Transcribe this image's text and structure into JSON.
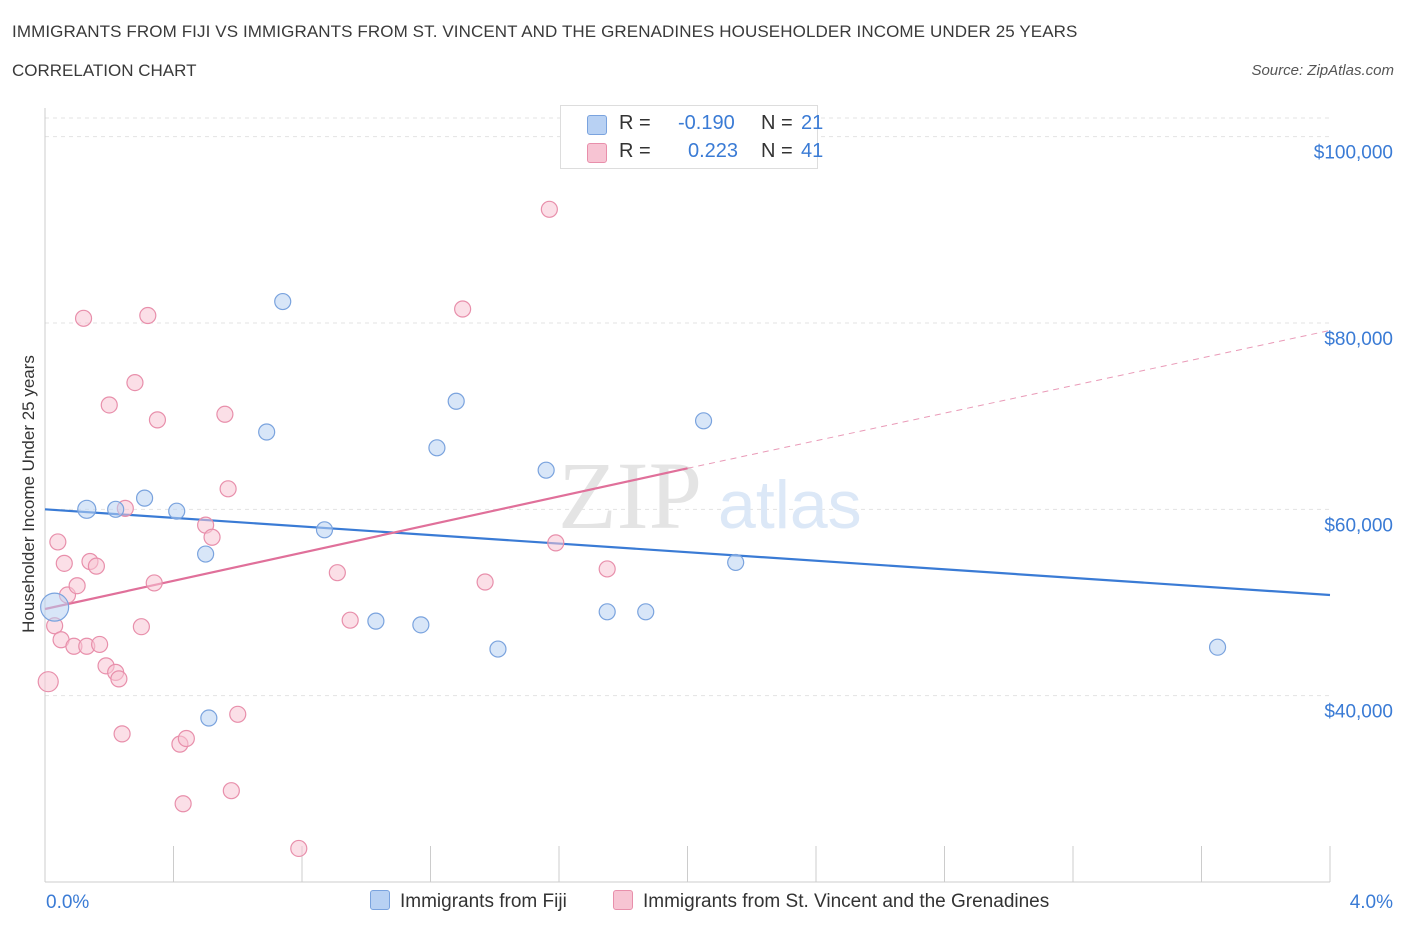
{
  "header": {
    "title": "IMMIGRANTS FROM FIJI VS IMMIGRANTS FROM ST. VINCENT AND THE GRENADINES HOUSEHOLDER INCOME UNDER 25 YEARS",
    "subtitle": "CORRELATION CHART",
    "source": "Source: ZipAtlas.com"
  },
  "legend": {
    "fiji": {
      "r_label": "R =",
      "r_value": "-0.190",
      "n_label": "N =",
      "n_value": "21"
    },
    "svg": {
      "r_label": "R =",
      "r_value": "0.223",
      "n_label": "N =",
      "n_value": "41"
    }
  },
  "bottom_legend": {
    "fiji": "Immigrants from Fiji",
    "svg": "Immigrants from St. Vincent and the Grenadines"
  },
  "colors": {
    "fiji_fill": "#b8d1f3",
    "fiji_stroke": "#7aa3de",
    "fiji_line": "#3a7bd5",
    "svg_fill": "#f7c4d3",
    "svg_stroke": "#e88fab",
    "svg_line": "#e0709a",
    "tick_label": "#3a7bd5",
    "grid": "#e3e3e3",
    "watermark": "#e6e6e6"
  },
  "chart_data": {
    "type": "scatter",
    "title": "IMMIGRANTS FROM FIJI VS IMMIGRANTS FROM ST. VINCENT AND THE GRENADINES HOUSEHOLDER INCOME UNDER 25 YEARS",
    "xlabel": "",
    "ylabel": "Householder Income Under 25 years",
    "xlim": [
      0,
      4.0
    ],
    "ylim": [
      20000,
      102000
    ],
    "x_tick_labels": [
      "0.0%",
      "4.0%"
    ],
    "y_ticks": [
      40000,
      60000,
      80000,
      100000
    ],
    "y_tick_labels": [
      "$40,000",
      "$60,000",
      "$80,000",
      "$100,000"
    ],
    "grid": true,
    "legend_position": "top-center",
    "watermark": {
      "zip": "ZIP",
      "atlas": "atlas"
    },
    "series": [
      {
        "name": "Immigrants from Fiji",
        "points": [
          [
            0.03,
            49500,
            14
          ],
          [
            0.13,
            60000,
            9
          ],
          [
            0.22,
            60000,
            8
          ],
          [
            0.31,
            61200,
            8
          ],
          [
            0.41,
            59800,
            8
          ],
          [
            0.5,
            55200,
            8
          ],
          [
            0.51,
            37600,
            8
          ],
          [
            0.69,
            68300,
            8
          ],
          [
            0.74,
            82300,
            8
          ],
          [
            0.87,
            57800,
            8
          ],
          [
            1.03,
            48000,
            8
          ],
          [
            1.17,
            47600,
            8
          ],
          [
            1.22,
            66600,
            8
          ],
          [
            1.28,
            71600,
            8
          ],
          [
            1.41,
            45000,
            8
          ],
          [
            1.56,
            64200,
            8
          ],
          [
            1.75,
            49000,
            8
          ],
          [
            1.87,
            49000,
            8
          ],
          [
            2.05,
            69500,
            8
          ],
          [
            2.15,
            54300,
            8
          ],
          [
            3.65,
            45200,
            8
          ]
        ],
        "trend": {
          "x": [
            0,
            4.0
          ],
          "y": [
            60000,
            50800
          ]
        }
      },
      {
        "name": "Immigrants from St. Vincent and the Grenadines",
        "points": [
          [
            0.01,
            41500,
            10
          ],
          [
            0.03,
            47500,
            8
          ],
          [
            0.04,
            56500,
            8
          ],
          [
            0.05,
            46000,
            8
          ],
          [
            0.06,
            54200,
            8
          ],
          [
            0.07,
            50800,
            8
          ],
          [
            0.09,
            45300,
            8
          ],
          [
            0.1,
            51800,
            8
          ],
          [
            0.12,
            80500,
            8
          ],
          [
            0.13,
            45300,
            8
          ],
          [
            0.14,
            54400,
            8
          ],
          [
            0.16,
            53900,
            8
          ],
          [
            0.17,
            45500,
            8
          ],
          [
            0.19,
            43200,
            8
          ],
          [
            0.2,
            71200,
            8
          ],
          [
            0.22,
            42500,
            8
          ],
          [
            0.23,
            41800,
            8
          ],
          [
            0.24,
            35900,
            8
          ],
          [
            0.25,
            60100,
            8
          ],
          [
            0.28,
            73600,
            8
          ],
          [
            0.3,
            47400,
            8
          ],
          [
            0.32,
            80800,
            8
          ],
          [
            0.34,
            52100,
            8
          ],
          [
            0.35,
            69600,
            8
          ],
          [
            0.42,
            34800,
            8
          ],
          [
            0.43,
            28400,
            8
          ],
          [
            0.44,
            35400,
            8
          ],
          [
            0.5,
            58300,
            8
          ],
          [
            0.52,
            57000,
            8
          ],
          [
            0.56,
            70200,
            8
          ],
          [
            0.57,
            62200,
            8
          ],
          [
            0.58,
            29800,
            8
          ],
          [
            0.6,
            38000,
            8
          ],
          [
            0.79,
            23600,
            8
          ],
          [
            0.91,
            53200,
            8
          ],
          [
            0.95,
            48100,
            8
          ],
          [
            1.3,
            81500,
            8
          ],
          [
            1.37,
            52200,
            8
          ],
          [
            1.59,
            56400,
            8
          ],
          [
            1.57,
            92200,
            8
          ],
          [
            1.75,
            53600,
            8
          ]
        ],
        "trend": {
          "x": [
            0,
            2.0
          ],
          "y": [
            49300,
            64400
          ]
        },
        "trend_extension": {
          "x": [
            2.0,
            4.0
          ],
          "y": [
            64400,
            79200
          ]
        }
      }
    ]
  }
}
